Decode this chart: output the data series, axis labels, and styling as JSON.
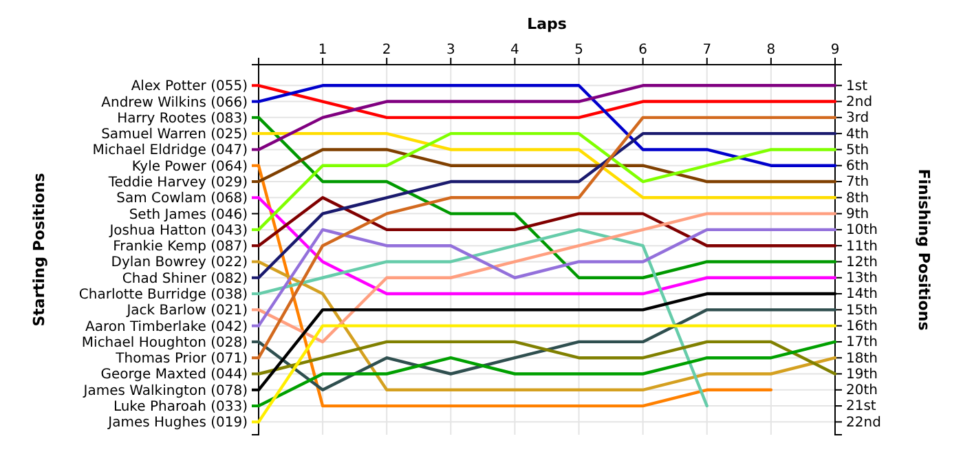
{
  "chart_data": {
    "type": "line",
    "xlabel": "Laps",
    "ylabel": "Finishing Positions",
    "legend_title": "Starting Positions",
    "xlim": [
      0,
      9
    ],
    "xticks": [
      1,
      2,
      3,
      4,
      5,
      6,
      7,
      8,
      9
    ],
    "x": [
      0,
      1,
      2,
      3,
      4,
      5,
      6,
      7,
      8,
      9
    ],
    "ylim": [
      22.8,
      -0.3
    ],
    "yticks": [
      {
        "value": 1,
        "label": "1st"
      },
      {
        "value": 2,
        "label": "2nd"
      },
      {
        "value": 3,
        "label": "3rd"
      },
      {
        "value": 4,
        "label": "4th"
      },
      {
        "value": 5,
        "label": "5th"
      },
      {
        "value": 6,
        "label": "6th"
      },
      {
        "value": 7,
        "label": "7th"
      },
      {
        "value": 8,
        "label": "8th"
      },
      {
        "value": 9,
        "label": "9th"
      },
      {
        "value": 10,
        "label": "10th"
      },
      {
        "value": 11,
        "label": "11th"
      },
      {
        "value": 12,
        "label": "12th"
      },
      {
        "value": 13,
        "label": "13th"
      },
      {
        "value": 14,
        "label": "14th"
      },
      {
        "value": 15,
        "label": "15th"
      },
      {
        "value": 16,
        "label": "16th"
      },
      {
        "value": 17,
        "label": "17th"
      },
      {
        "value": 18,
        "label": "18th"
      },
      {
        "value": 19,
        "label": "19th"
      },
      {
        "value": 20,
        "label": "20th"
      },
      {
        "value": 21,
        "label": "21st"
      },
      {
        "value": 22,
        "label": "22nd"
      }
    ],
    "grid": true,
    "legend": "left",
    "marker": "none",
    "line_style": "solid",
    "annotations": [
      "Seth James (046)"
    ],
    "series": [
      {
        "name": "Alex Potter (055)",
        "color": "#ff0000",
        "values": [
          1,
          2,
          3,
          3,
          3,
          3,
          2,
          2,
          2,
          2
        ]
      },
      {
        "name": "Andrew Wilkins (066)",
        "color": "#0000cc",
        "values": [
          2,
          1,
          1,
          1,
          1,
          1,
          5,
          5,
          6,
          6
        ]
      },
      {
        "name": "Harry Rootes (083)",
        "color": "#009900",
        "values": [
          3,
          7,
          7,
          9,
          9,
          13,
          13,
          12,
          12,
          12
        ]
      },
      {
        "name": "Samuel Warren (025)",
        "color": "#ffdd00",
        "values": [
          4,
          4,
          4,
          5,
          5,
          5,
          8,
          8,
          8,
          8
        ]
      },
      {
        "name": "Michael Eldridge (047)",
        "color": "#800080",
        "values": [
          5,
          3,
          2,
          2,
          2,
          2,
          1,
          1,
          1,
          1
        ]
      },
      {
        "name": "Kyle Power (064)",
        "color": "#ff8000",
        "values": [
          6,
          21,
          21,
          21,
          21,
          21,
          21,
          20,
          20,
          null
        ]
      },
      {
        "name": "Teddie Harvey (029)",
        "color": "#804000",
        "values": [
          7,
          5,
          5,
          6,
          6,
          6,
          6,
          7,
          7,
          7
        ]
      },
      {
        "name": "Sam Cowlam (068)",
        "color": "#ff00ff",
        "values": [
          8,
          12,
          14,
          14,
          14,
          14,
          14,
          13,
          13,
          13
        ]
      },
      {
        "name": "Joshua Hatton (043)",
        "color": "#80ff00",
        "values": [
          10,
          6,
          6,
          4,
          4,
          4,
          7,
          6,
          5,
          5
        ]
      },
      {
        "name": "Frankie Kemp (087)",
        "color": "#800000",
        "values": [
          11,
          8,
          10,
          10,
          10,
          9,
          9,
          11,
          11,
          11
        ]
      },
      {
        "name": "Dylan Bowrey (022)",
        "color": "#d4a020",
        "values": [
          12,
          14,
          20,
          20,
          20,
          20,
          20,
          19,
          19,
          18
        ]
      },
      {
        "name": "Chad Shiner (082)",
        "color": "#1a1a6e",
        "values": [
          13,
          9,
          8,
          7,
          7,
          7,
          4,
          4,
          4,
          4
        ]
      },
      {
        "name": "Charlotte Burridge (038)",
        "color": "#66ccaa",
        "values": [
          14,
          13,
          12,
          12,
          11,
          10,
          11,
          21,
          null,
          null
        ]
      },
      {
        "name": "Jack Barlow (021)",
        "color": "#ff9f80",
        "values": [
          15,
          17,
          13,
          13,
          12,
          11,
          10,
          9,
          9,
          9
        ]
      },
      {
        "name": "Aaron Timberlake (042)",
        "color": "#9370db",
        "values": [
          16,
          10,
          11,
          11,
          13,
          12,
          12,
          10,
          10,
          10
        ]
      },
      {
        "name": "Michael Houghton (028)",
        "color": "#2f4f4f",
        "values": [
          17,
          20,
          18,
          19,
          18,
          17,
          17,
          15,
          15,
          15
        ]
      },
      {
        "name": "Thomas Prior (071)",
        "color": "#d2691e",
        "values": [
          18,
          11,
          9,
          8,
          8,
          8,
          3,
          3,
          3,
          3
        ]
      },
      {
        "name": "George Maxted (044)",
        "color": "#808000",
        "values": [
          19,
          18,
          17,
          17,
          17,
          18,
          18,
          17,
          17,
          19
        ]
      },
      {
        "name": "James Walkington (078)",
        "color": "#000000",
        "values": [
          20,
          15,
          15,
          15,
          15,
          15,
          15,
          14,
          14,
          14
        ]
      },
      {
        "name": "Luke Pharoah (033)",
        "color": "#00a000",
        "values": [
          21,
          19,
          19,
          18,
          19,
          19,
          19,
          18,
          18,
          17
        ]
      },
      {
        "name": "James Hughes (019)",
        "color": "#ffee00",
        "values": [
          22,
          16,
          16,
          16,
          16,
          16,
          16,
          16,
          16,
          16
        ]
      }
    ]
  }
}
